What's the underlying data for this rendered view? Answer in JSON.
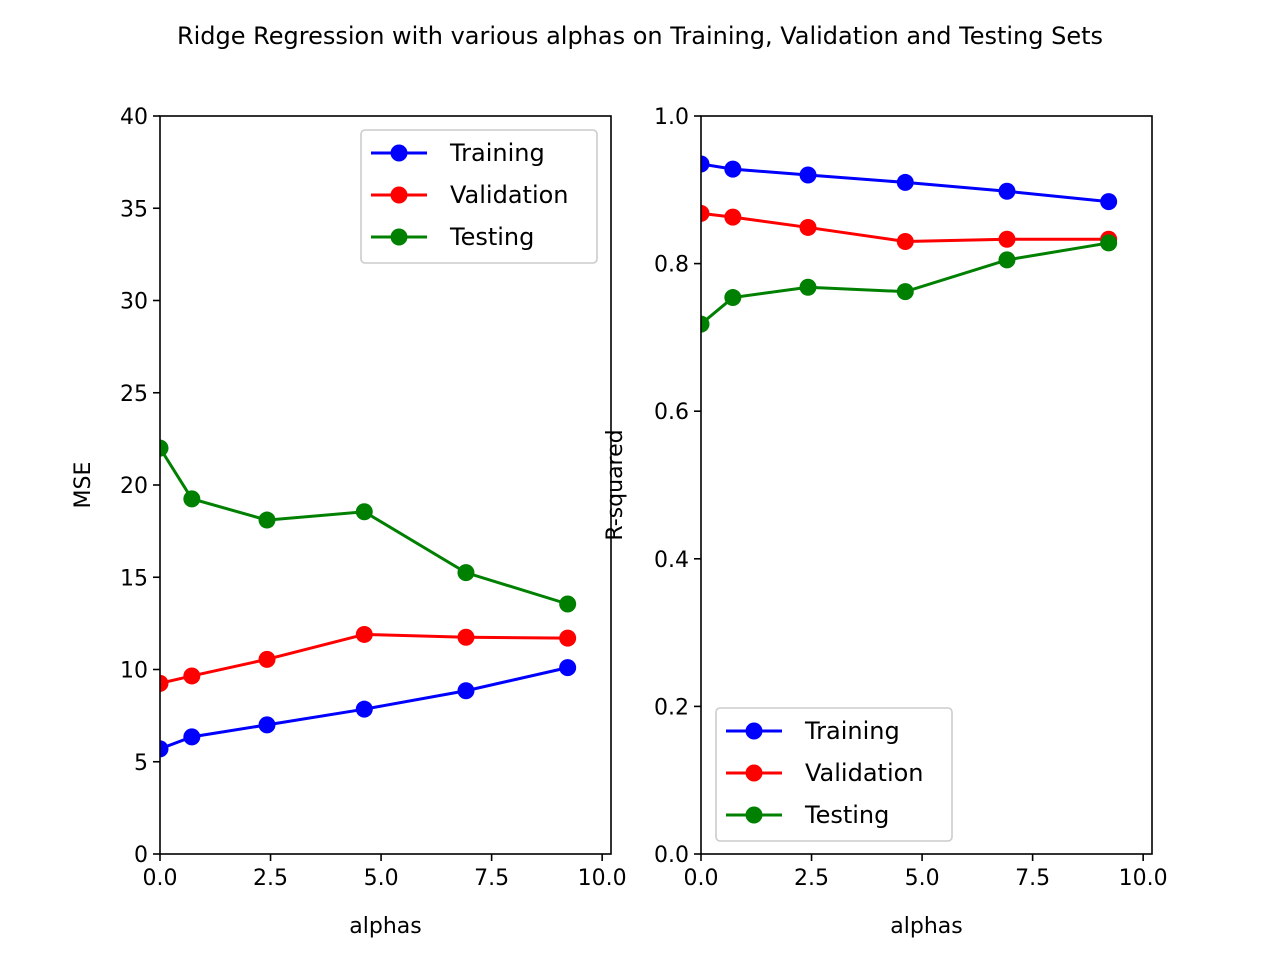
{
  "title": "Ridge Regression with various alphas on Training, Validation and Testing Sets",
  "colors": {
    "Training": "#0000ff",
    "Validation": "#ff0000",
    "Testing": "#008000"
  },
  "chart_data": [
    {
      "type": "line",
      "xlabel": "alphas",
      "ylabel": "MSE",
      "xlim": [
        0,
        10.2
      ],
      "ylim": [
        0,
        40
      ],
      "xticks": [
        "0.0",
        "2.5",
        "5.0",
        "7.5",
        "10.0"
      ],
      "yticks": [
        "0",
        "5",
        "10",
        "15",
        "20",
        "25",
        "30",
        "35",
        "40"
      ],
      "legend_position": "top-right",
      "x": [
        0.0,
        0.72,
        2.42,
        4.62,
        6.92,
        9.22
      ],
      "series": [
        {
          "name": "Training",
          "color": "#0000ff",
          "values": [
            5.7,
            6.35,
            7.0,
            7.85,
            8.85,
            10.1
          ]
        },
        {
          "name": "Validation",
          "color": "#ff0000",
          "values": [
            9.25,
            9.65,
            10.55,
            11.9,
            11.75,
            11.7
          ]
        },
        {
          "name": "Testing",
          "color": "#008000",
          "values": [
            22.0,
            19.25,
            18.1,
            18.55,
            15.25,
            13.55
          ]
        }
      ]
    },
    {
      "type": "line",
      "xlabel": "alphas",
      "ylabel": "R-squared",
      "xlim": [
        0,
        10.2
      ],
      "ylim": [
        0,
        1.0
      ],
      "xticks": [
        "0.0",
        "2.5",
        "5.0",
        "7.5",
        "10.0"
      ],
      "yticks": [
        "0.0",
        "0.2",
        "0.4",
        "0.6",
        "0.8",
        "1.0"
      ],
      "legend_position": "bottom-left",
      "x": [
        0.0,
        0.72,
        2.42,
        4.62,
        6.92,
        9.22
      ],
      "series": [
        {
          "name": "Training",
          "color": "#0000ff",
          "values": [
            0.935,
            0.928,
            0.92,
            0.91,
            0.898,
            0.884
          ]
        },
        {
          "name": "Validation",
          "color": "#ff0000",
          "values": [
            0.868,
            0.863,
            0.849,
            0.83,
            0.833,
            0.833
          ]
        },
        {
          "name": "Testing",
          "color": "#008000",
          "values": [
            0.718,
            0.754,
            0.768,
            0.762,
            0.805,
            0.828
          ]
        }
      ]
    }
  ]
}
